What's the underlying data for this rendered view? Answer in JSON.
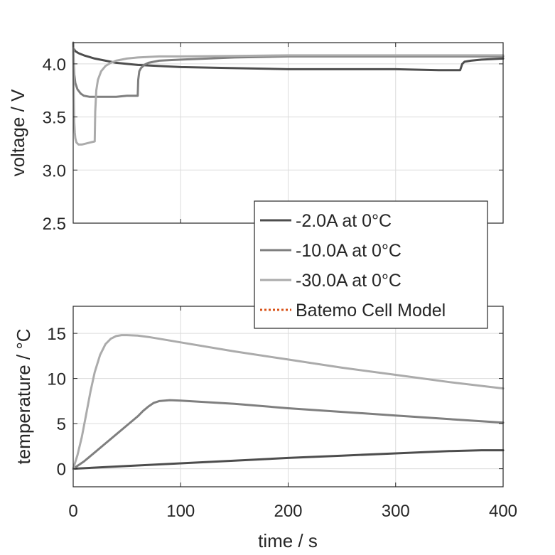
{
  "chart_data": [
    {
      "type": "line",
      "ylabel": "voltage / V",
      "xlim": [
        0,
        400
      ],
      "ylim": [
        2.5,
        4.2
      ],
      "xticks": [
        0,
        100,
        200,
        300,
        400
      ],
      "yticks": [
        "2.5",
        "3.0",
        "3.5",
        "4.0"
      ],
      "grid": true,
      "series": [
        {
          "name": "-2.0A at 0°C",
          "color": "#4d4d4d",
          "x": [
            0,
            2,
            5,
            10,
            20,
            40,
            60,
            80,
            100,
            150,
            200,
            250,
            300,
            340,
            360,
            362,
            364,
            370,
            380,
            400
          ],
          "y": [
            4.15,
            4.12,
            4.1,
            4.08,
            4.05,
            4.01,
            3.99,
            3.98,
            3.97,
            3.96,
            3.95,
            3.95,
            3.95,
            3.94,
            3.94,
            4.0,
            4.02,
            4.03,
            4.04,
            4.05
          ]
        },
        {
          "name": "-10.0A at 0°C",
          "color": "#7f7f7f",
          "x": [
            0,
            0.5,
            1,
            2,
            4,
            7,
            10,
            15,
            20,
            30,
            40,
            50,
            60,
            60.5,
            61.5,
            63,
            66,
            70,
            80,
            100,
            150,
            200,
            300,
            400
          ],
          "y": [
            4.2,
            4.0,
            3.9,
            3.82,
            3.76,
            3.72,
            3.7,
            3.69,
            3.69,
            3.69,
            3.69,
            3.7,
            3.7,
            3.85,
            3.93,
            3.96,
            3.99,
            4.01,
            4.03,
            4.04,
            4.06,
            4.07,
            4.07,
            4.07
          ]
        },
        {
          "name": "-30.0A at 0°C",
          "color": "#ababab",
          "x": [
            0,
            0.5,
            1,
            1.5,
            2,
            3,
            5,
            8,
            12,
            16,
            20,
            20.5,
            21.5,
            23,
            26,
            30,
            35,
            40,
            50,
            60,
            80,
            100,
            150,
            200,
            300,
            400
          ],
          "y": [
            4.15,
            3.7,
            3.45,
            3.35,
            3.3,
            3.26,
            3.24,
            3.24,
            3.25,
            3.26,
            3.27,
            3.55,
            3.75,
            3.85,
            3.93,
            3.98,
            4.01,
            4.03,
            4.05,
            4.06,
            4.07,
            4.07,
            4.075,
            4.08,
            4.08,
            4.08
          ]
        }
      ]
    },
    {
      "type": "line",
      "xlabel": "time / s",
      "ylabel": "temperature / °C",
      "xlim": [
        0,
        400
      ],
      "ylim": [
        -2,
        18
      ],
      "xticks": [
        0,
        100,
        200,
        300,
        400
      ],
      "yticks": [
        0,
        5,
        10,
        15
      ],
      "grid": true,
      "series": [
        {
          "name": "-2.0A at 0°C",
          "color": "#4d4d4d",
          "x": [
            0,
            50,
            100,
            150,
            200,
            250,
            300,
            350,
            380,
            400
          ],
          "y": [
            0,
            0.3,
            0.6,
            0.9,
            1.2,
            1.45,
            1.7,
            1.95,
            2.05,
            2.05
          ]
        },
        {
          "name": "-10.0A at 0°C",
          "color": "#7f7f7f",
          "x": [
            0,
            10,
            20,
            30,
            40,
            50,
            60,
            65,
            70,
            75,
            80,
            90,
            100,
            150,
            200,
            250,
            300,
            350,
            400
          ],
          "y": [
            0,
            0.8,
            1.8,
            2.8,
            3.8,
            4.8,
            5.8,
            6.4,
            6.9,
            7.3,
            7.5,
            7.6,
            7.55,
            7.2,
            6.7,
            6.3,
            5.9,
            5.5,
            5.1
          ]
        },
        {
          "name": "-30.0A at 0°C",
          "color": "#ababab",
          "x": [
            0,
            4,
            8,
            12,
            16,
            20,
            25,
            30,
            35,
            40,
            45,
            50,
            60,
            70,
            80,
            100,
            150,
            200,
            250,
            300,
            350,
            400
          ],
          "y": [
            0,
            1.5,
            3.5,
            6.0,
            8.5,
            10.7,
            12.6,
            13.8,
            14.4,
            14.7,
            14.8,
            14.8,
            14.75,
            14.6,
            14.4,
            14.0,
            13.0,
            12.1,
            11.2,
            10.4,
            9.6,
            8.9
          ]
        }
      ]
    }
  ],
  "legend": {
    "placement": "overlapping lower plot top-right",
    "entries": [
      {
        "label": "-2.0A at 0°C",
        "color": "#4d4d4d",
        "style": "solid"
      },
      {
        "label": "-10.0A at 0°C",
        "color": "#7f7f7f",
        "style": "solid"
      },
      {
        "label": "-30.0A at 0°C",
        "color": "#ababab",
        "style": "solid"
      },
      {
        "label": "Batemo Cell Model",
        "color": "#d95319",
        "style": "dotted"
      }
    ]
  }
}
